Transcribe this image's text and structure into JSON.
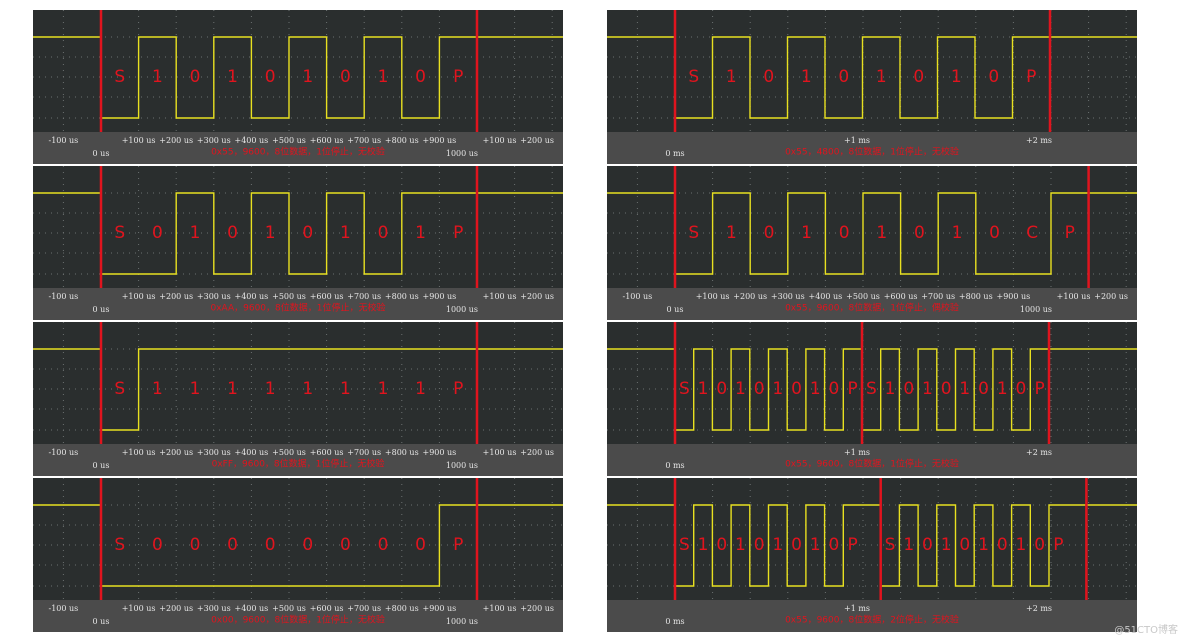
{
  "panels": [
    {
      "frames": [
        [
          "S",
          "1",
          "0",
          "1",
          "0",
          "1",
          "0",
          "1",
          "0",
          "P"
        ]
      ],
      "caption": "0x55，9600，8位数据，1位停止，无校验",
      "axis_top": [
        "-100 us",
        "+100 us",
        "+200 us",
        "+300 us",
        "+400 us",
        "+500 us",
        "+600 us",
        "+700 us",
        "+800 us",
        "+900 us",
        "+100 us",
        "+200 us"
      ],
      "axis_bottom": [
        "0 us",
        "1000 us"
      ]
    },
    {
      "frames": [
        [
          "S",
          "0",
          "1",
          "0",
          "1",
          "0",
          "1",
          "0",
          "1",
          "P"
        ]
      ],
      "caption": "0xAA，9600，8位数据，1位停止，无校验",
      "axis_top": [
        "-100 us",
        "+100 us",
        "+200 us",
        "+300 us",
        "+400 us",
        "+500 us",
        "+600 us",
        "+700 us",
        "+800 us",
        "+900 us",
        "+100 us",
        "+200 us"
      ],
      "axis_bottom": [
        "0 us",
        "1000 us"
      ]
    },
    {
      "frames": [
        [
          "S",
          "1",
          "1",
          "1",
          "1",
          "1",
          "1",
          "1",
          "1",
          "P"
        ]
      ],
      "caption": "0xFF，9600，8位数据，1位停止，无校验",
      "axis_top": [
        "-100 us",
        "+100 us",
        "+200 us",
        "+300 us",
        "+400 us",
        "+500 us",
        "+600 us",
        "+700 us",
        "+800 us",
        "+900 us",
        "+100 us",
        "+200 us"
      ],
      "axis_bottom": [
        "0 us",
        "1000 us"
      ]
    },
    {
      "frames": [
        [
          "S",
          "0",
          "0",
          "0",
          "0",
          "0",
          "0",
          "0",
          "0",
          "P"
        ]
      ],
      "caption": "0x00，9600，8位数据，1位停止，无校验",
      "axis_top": [
        "-100 us",
        "+100 us",
        "+200 us",
        "+300 us",
        "+400 us",
        "+500 us",
        "+600 us",
        "+700 us",
        "+800 us",
        "+900 us",
        "+100 us",
        "+200 us"
      ],
      "axis_bottom": [
        "0 us",
        "1000 us"
      ]
    },
    {
      "frames": [
        [
          "S",
          "1",
          "0",
          "1",
          "0",
          "1",
          "0",
          "1",
          "0",
          "P"
        ]
      ],
      "caption": "0x55，4800，8位数据，1位停止，无校验",
      "axis_top": [
        "+1 ms",
        "+2 ms"
      ],
      "axis_bottom": [
        "0 ms"
      ]
    },
    {
      "frames": [
        [
          "S",
          "1",
          "0",
          "1",
          "0",
          "1",
          "0",
          "1",
          "0",
          "C",
          "P"
        ]
      ],
      "caption": "0x55，9600，8位数据，1位停止，偶校验",
      "axis_top": [
        "-100 us",
        "+100 us",
        "+200 us",
        "+300 us",
        "+400 us",
        "+500 us",
        "+600 us",
        "+700 us",
        "+800 us",
        "+900 us",
        "+100 us",
        "+200 us"
      ],
      "axis_bottom": [
        "0 us",
        "1000 us"
      ]
    },
    {
      "frames": [
        [
          "S",
          "1",
          "0",
          "1",
          "0",
          "1",
          "0",
          "1",
          "0",
          "P"
        ],
        [
          "S",
          "1",
          "0",
          "1",
          "0",
          "1",
          "0",
          "1",
          "0",
          "P"
        ]
      ],
      "caption": "0x55，9600，8位数据，1位停止，无校验",
      "axis_top": [
        "+1 ms",
        "+2 ms"
      ],
      "axis_bottom": [
        "0 ms"
      ]
    },
    {
      "frames": [
        [
          "S",
          "1",
          "0",
          "1",
          "0",
          "1",
          "0",
          "1",
          "0",
          "P"
        ],
        [
          "S",
          "1",
          "0",
          "1",
          "0",
          "1",
          "0",
          "1",
          "0",
          "P"
        ]
      ],
      "caption": "0x55，9600，8位数据，2位停止，无校验",
      "axis_top": [
        "+1 ms",
        "+2 ms"
      ],
      "axis_bottom": [
        "0 ms"
      ]
    }
  ],
  "watermark": "@51CTO博客"
}
